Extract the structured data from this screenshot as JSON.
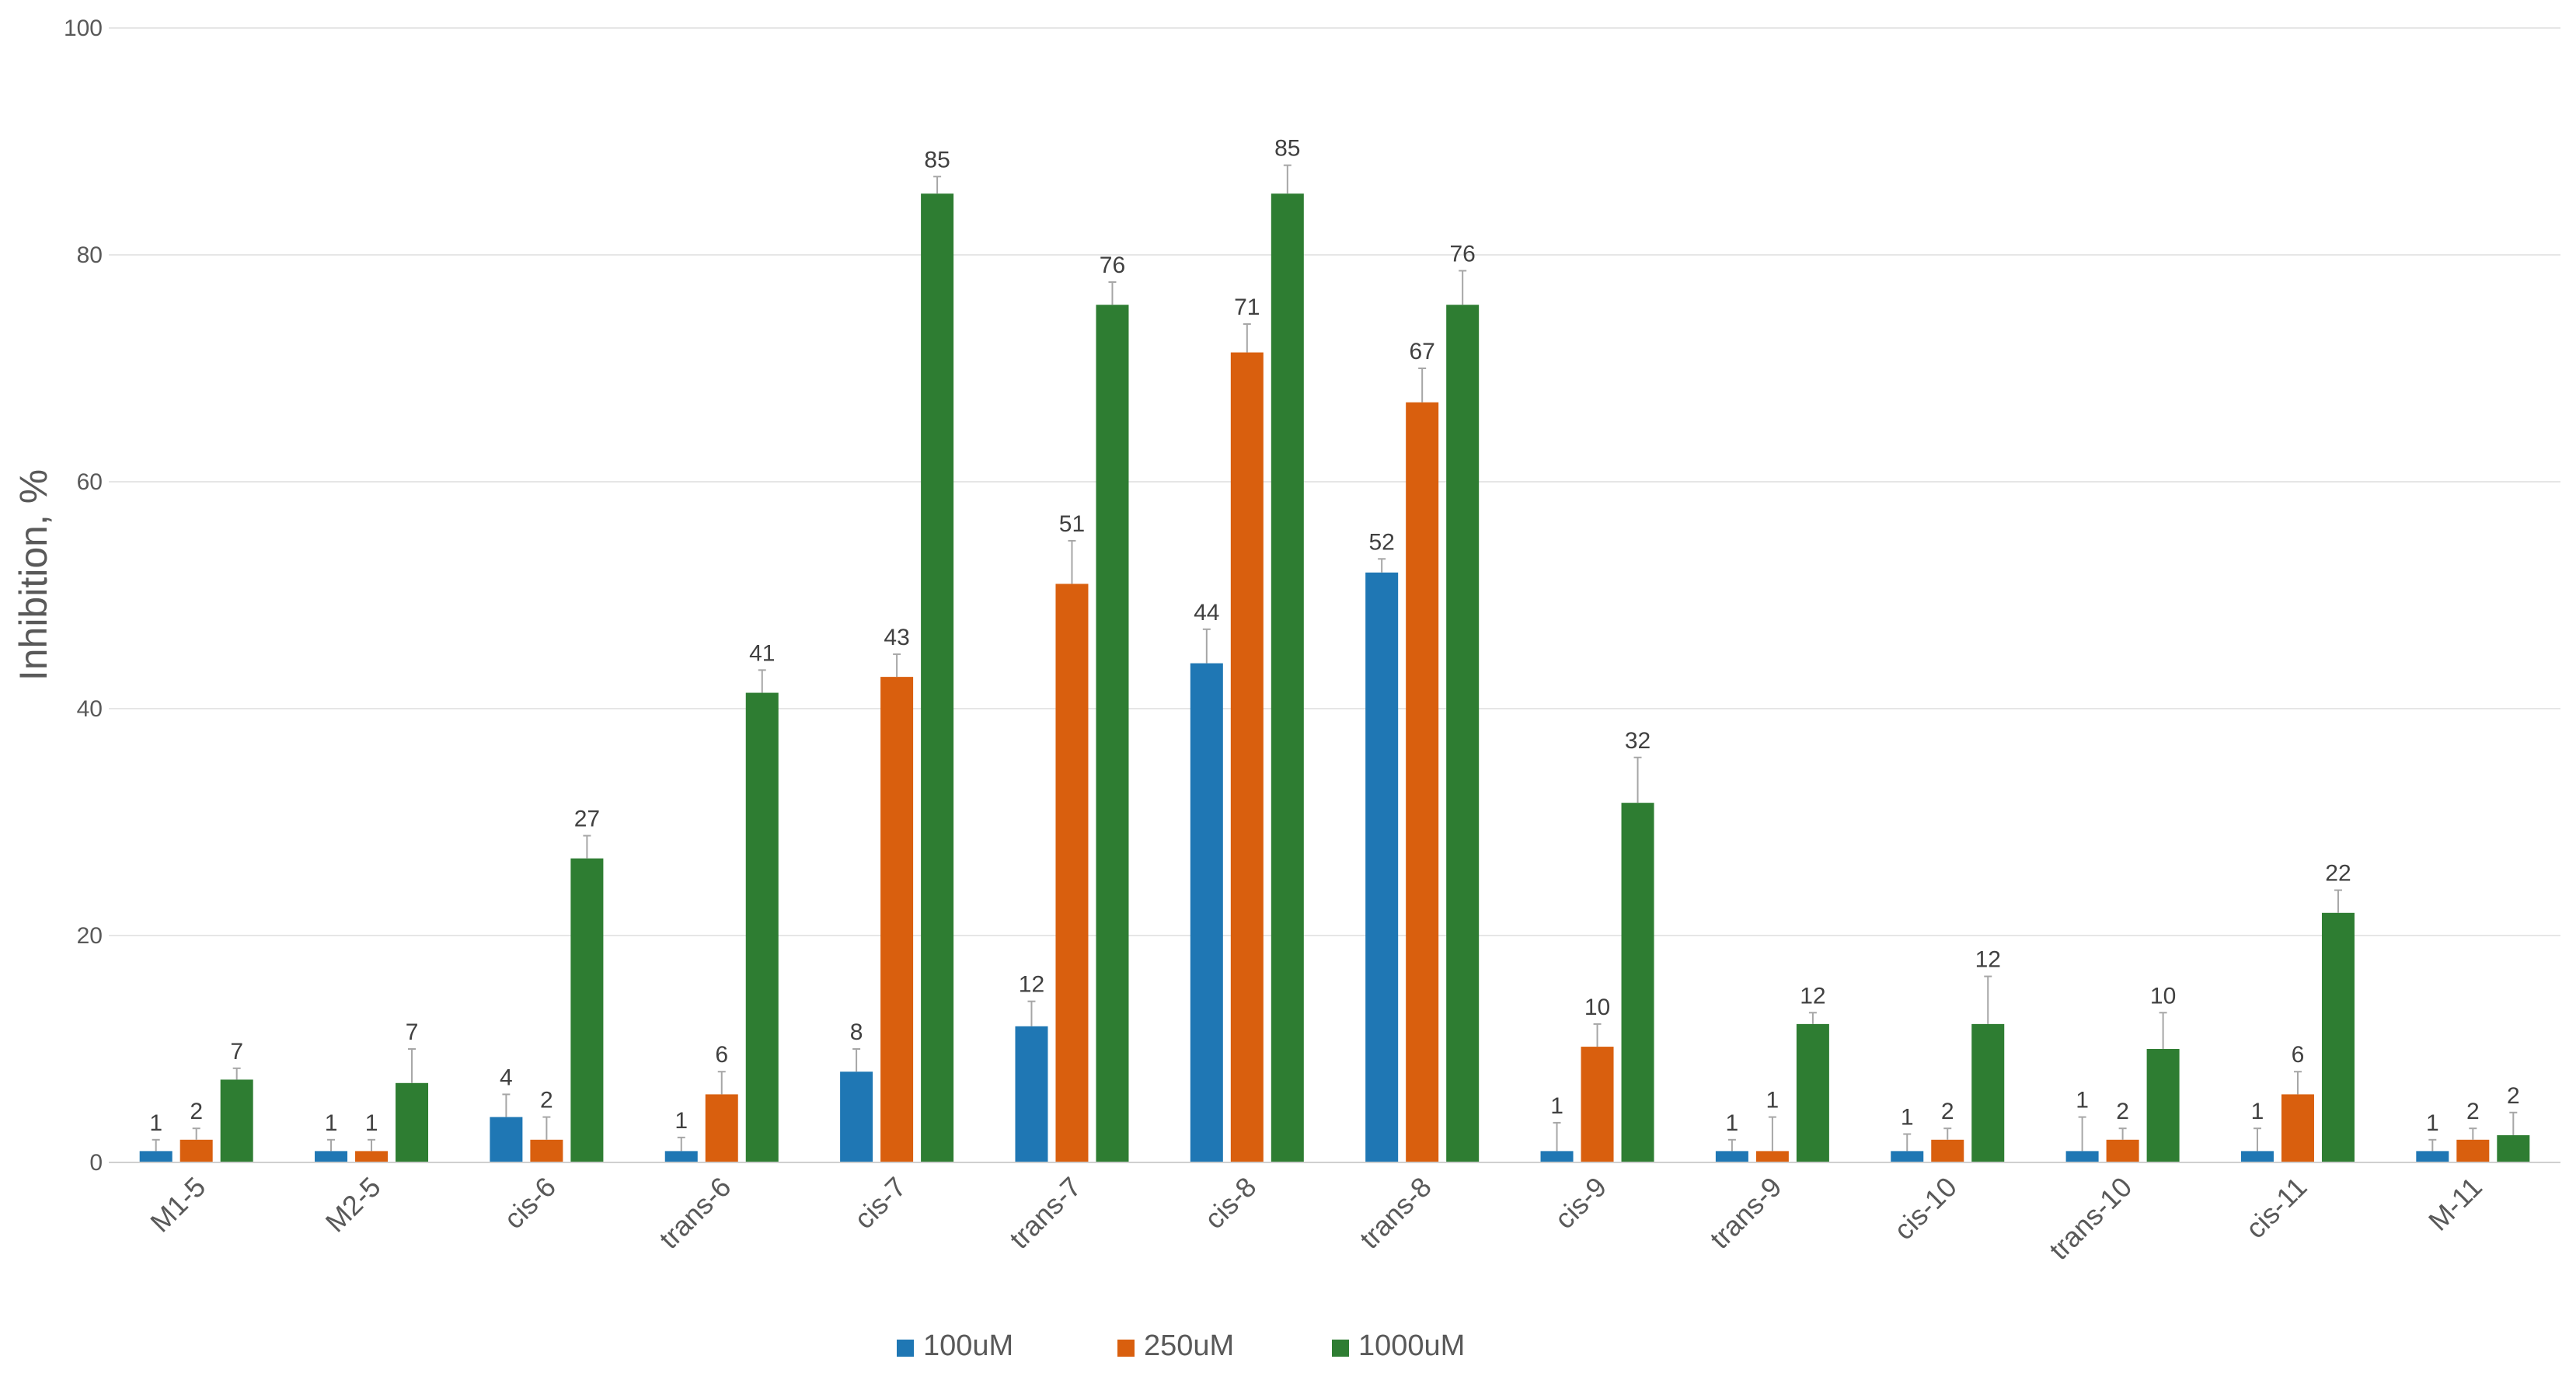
{
  "chart_data": {
    "type": "bar",
    "title": "",
    "xlabel": "",
    "ylabel": "Inhibition, %",
    "ylim": [
      0,
      100
    ],
    "yticks": [
      0,
      20,
      40,
      60,
      80,
      100
    ],
    "grid": true,
    "legend_position": "bottom-center",
    "categories": [
      "M1-5",
      "M2-5",
      "cis-6",
      "trans-6",
      "cis-7",
      "trans-7",
      "cis-8",
      "trans-8",
      "cis-9",
      "trans-9",
      "cis-10",
      "trans-10",
      "cis-11",
      "M-11"
    ],
    "series": [
      {
        "name": "100uM",
        "color": "#1f77b4",
        "values": [
          1.0,
          1.0,
          4.0,
          1.0,
          8.0,
          12.0,
          44.0,
          52.0,
          1.0,
          1.0,
          1.0,
          1.0,
          1.0,
          1.0
        ],
        "labels": [
          "1",
          "1",
          "4",
          "1",
          "8",
          "12",
          "44",
          "52",
          "1",
          "1",
          "1",
          "1",
          "1",
          "1"
        ],
        "errors": [
          1.0,
          1.0,
          2.0,
          1.2,
          2.0,
          2.2,
          3.0,
          1.2,
          2.5,
          1.0,
          1.5,
          3.0,
          2.0,
          1.0
        ]
      },
      {
        "name": "250uM",
        "color": "#d95f0e",
        "values": [
          2.0,
          1.0,
          2.0,
          6.0,
          42.8,
          51.0,
          71.4,
          67.0,
          10.2,
          1.0,
          2.0,
          2.0,
          6.0,
          2.0
        ],
        "labels": [
          "2",
          "1",
          "2",
          "6",
          "43",
          "51",
          "71",
          "67",
          "10",
          "1",
          "2",
          "2",
          "6",
          "2"
        ],
        "errors": [
          1.0,
          1.0,
          2.0,
          2.0,
          2.0,
          3.8,
          2.5,
          3.0,
          2.0,
          3.0,
          1.0,
          1.0,
          2.0,
          1.0
        ]
      },
      {
        "name": "1000uM",
        "color": "#2e7d32",
        "values": [
          7.3,
          7.0,
          26.8,
          41.4,
          85.4,
          75.6,
          85.4,
          75.6,
          31.7,
          12.2,
          12.2,
          10.0,
          22.0,
          2.4
        ],
        "labels": [
          "7",
          "7",
          "27",
          "41",
          "85",
          "76",
          "85",
          "76",
          "32",
          "12",
          "12",
          "10",
          "22",
          "2"
        ],
        "errors": [
          1.0,
          3.0,
          2.0,
          2.0,
          1.5,
          2.0,
          2.5,
          3.0,
          4.0,
          1.0,
          4.2,
          3.2,
          2.0,
          2.0
        ]
      }
    ]
  }
}
